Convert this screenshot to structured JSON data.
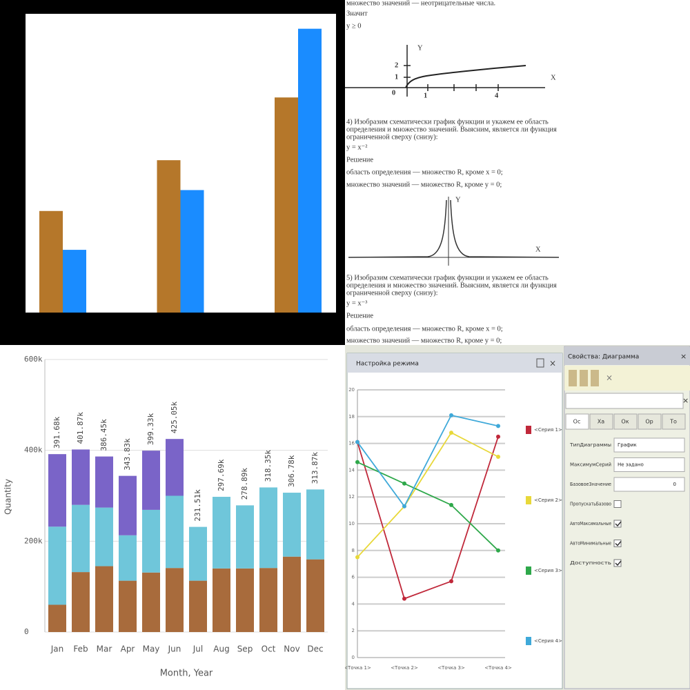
{
  "chart_data": [
    {
      "type": "bar",
      "categories": [
        null,
        null,
        null
      ],
      "ylim": [
        0,
        100
      ],
      "series": [
        {
          "color": "#b5772a",
          "values": [
            34,
            51,
            72
          ]
        },
        {
          "color": "#1a8cff",
          "values": [
            21,
            41,
            95
          ]
        }
      ]
    },
    {
      "type": "stacked_bar",
      "ylabel": "Quantity",
      "xlabel": "Month, Year",
      "categories": [
        "Jan",
        "Feb",
        "Mar",
        "Apr",
        "May",
        "Jun",
        "Jul",
        "Aug",
        "Sep",
        "Oct",
        "Nov",
        "Dec"
      ],
      "series": [
        {
          "color": "#a86b3c",
          "values": [
            60000,
            132000,
            145000,
            113000,
            131000,
            141000,
            113000,
            140000,
            140000,
            141000,
            166000,
            160000
          ]
        },
        {
          "color": "#6fc6da",
          "values": [
            172000,
            148000,
            129000,
            100000,
            138000,
            159000,
            118510,
            157690,
            138890,
            177350,
            140780,
            153870
          ]
        },
        {
          "color": "#7a64c8",
          "values": [
            159680,
            121870,
            112450,
            130830,
            130330,
            125050,
            null,
            null,
            null,
            null,
            null,
            null
          ]
        }
      ],
      "totals": [
        391680,
        401870,
        386450,
        343830,
        399330,
        425050,
        231510,
        297690,
        278890,
        318350,
        306780,
        313870
      ],
      "total_labels": [
        "391.68k",
        "401.87k",
        "386.45k",
        "343.83k",
        "399.33k",
        "425.05k",
        "231.51k",
        "297.69k",
        "278.89k",
        "318.35k",
        "306.78k",
        "313.87k"
      ],
      "ylim": [
        0,
        600000
      ],
      "yticks": [
        0,
        {
          "value": 200000,
          "label": "200k"
        },
        {
          "value": 400000,
          "label": "400k"
        },
        {
          "value": 600000,
          "label": "600k"
        }
      ],
      "grid": true
    },
    {
      "type": "line",
      "title": "Настройка режима",
      "categories": [
        "<Точка 1>",
        "<Точка 2>",
        "<Точка 3>",
        "<Точка 4>"
      ],
      "series": [
        {
          "name": "<Серия 1>",
          "color": "#c0283a",
          "values": [
            16.1,
            4.4,
            5.7,
            16.5
          ]
        },
        {
          "name": "<Серия 2>",
          "color": "#e8d83a",
          "values": [
            7.5,
            11.3,
            16.8,
            15.0
          ]
        },
        {
          "name": "<Серия 3>",
          "color": "#2ea84a",
          "values": [
            14.6,
            13.0,
            11.4,
            8.0
          ]
        },
        {
          "name": "<Серия 4>",
          "color": "#3fa9d9",
          "values": [
            16.1,
            11.3,
            18.1,
            17.3
          ]
        }
      ],
      "ylim": [
        0,
        20
      ],
      "yticks": [
        0,
        2,
        4,
        6,
        8,
        10,
        12,
        14,
        16,
        18,
        20
      ],
      "grid": true
    }
  ],
  "document": {
    "intro": [
      "множество значений — неотрицательные числа.",
      "Значит",
      "y ≥ 0"
    ],
    "graph_1": {
      "y_axis": "Y",
      "x_axis": "X",
      "y_ticks": [
        "2",
        "1"
      ],
      "origin": "0",
      "x_ticks": [
        "1",
        "4"
      ]
    },
    "task_4": {
      "text": [
        "4) Изобразим схематически график функции и укажем ее область",
        "определения и множество значений. Выясним, является ли функция",
        "ограниченной сверху (снизу):"
      ],
      "formula": "y = x⁻²",
      "solution": "Решение",
      "domain": "область определения — множество R, кроме x = 0;",
      "range": "множество значений — множество R, кроме y = 0;"
    },
    "graph_2": {
      "y_axis": "Y",
      "x_axis": "X"
    },
    "task_5": {
      "text": [
        "5) Изобразим схематически график функции и укажем ее область",
        "определения и множество значений. Выясним, является ли функция",
        "ограниченной сверху (снизу):"
      ],
      "formula": "y = x⁻³",
      "solution": "Решение",
      "domain": "область определения — множество R, кроме x = 0;",
      "range": "множество значений — множество R, кроме y = 0;"
    }
  },
  "properties_panel": {
    "title": "Свойства: Диаграмма",
    "tabs": [
      "Ос",
      "Ха",
      "Ок",
      "Ор",
      "То"
    ],
    "rows": [
      {
        "label": "ТипДиаграммы",
        "value": "График"
      },
      {
        "label": "МаксимумСерий",
        "value": "Не задано"
      },
      {
        "label": "БазовоеЗначение",
        "value": "0"
      },
      {
        "label": "ПропускатьБазово",
        "checked": false
      },
      {
        "label": "АвтоМаксимальные",
        "checked": true
      },
      {
        "label": "АвтоМинимальные",
        "checked": true
      },
      {
        "label": "Доступность",
        "checked": true
      }
    ]
  }
}
